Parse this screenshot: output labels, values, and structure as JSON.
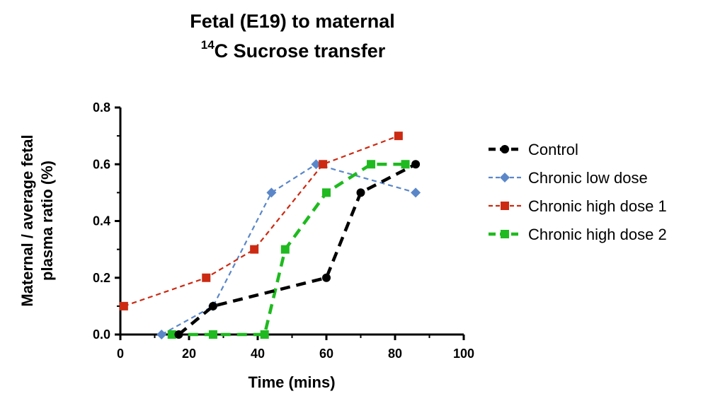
{
  "chart_data": {
    "type": "line",
    "title_line1": "Fetal (E19) to maternal",
    "title_line2_sup": "14",
    "title_line2_rest": "C Sucrose transfer",
    "xlabel": "Time (mins)",
    "ylabel_line1": "Maternal / average fetal",
    "ylabel_line2": "plasma ratio (%)",
    "xlim": [
      0,
      100
    ],
    "ylim": [
      0.0,
      0.8
    ],
    "x_ticks": [
      "0",
      "20",
      "40",
      "60",
      "80",
      "100"
    ],
    "y_ticks": [
      "0.0",
      "0.2",
      "0.4",
      "0.6",
      "0.8"
    ],
    "grid": false,
    "legend_position": "right",
    "series": [
      {
        "name": "Control",
        "color": "#000000",
        "marker": "circle",
        "line": "dashed-thick",
        "x": [
          17,
          27,
          60,
          70,
          86
        ],
        "y": [
          0.0,
          0.1,
          0.2,
          0.5,
          0.6
        ]
      },
      {
        "name": "Chronic low dose",
        "color": "#5b87c9",
        "marker": "diamond",
        "line": "dashed-thin",
        "x": [
          12,
          27,
          44,
          57,
          86
        ],
        "y": [
          0.0,
          0.1,
          0.5,
          0.6,
          0.5
        ]
      },
      {
        "name": "Chronic high dose 1",
        "color": "#cc2a12",
        "marker": "square",
        "line": "dashed-thin",
        "x": [
          1,
          25,
          39,
          59,
          81
        ],
        "y": [
          0.1,
          0.2,
          0.3,
          0.6,
          0.7
        ]
      },
      {
        "name": "Chronic high dose 2",
        "color": "#1fba1f",
        "marker": "square",
        "line": "dashed-thick",
        "x": [
          15,
          27,
          42,
          48,
          60,
          73,
          83
        ],
        "y": [
          0.0,
          0.0,
          0.0,
          0.3,
          0.5,
          0.6,
          0.6
        ]
      }
    ]
  }
}
